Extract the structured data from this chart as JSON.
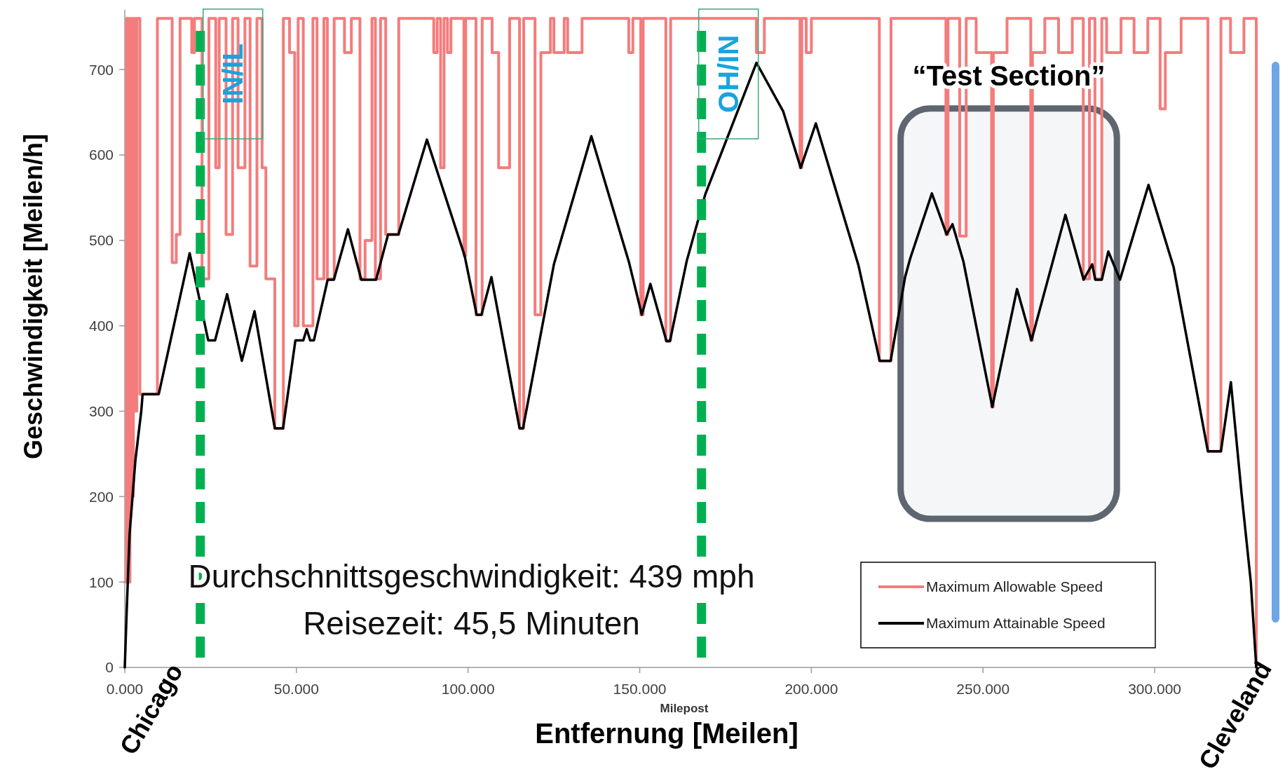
{
  "chart_data": {
    "type": "line",
    "xlabel": "Entfernung [Meilen]",
    "ylabel": "Geschwindigkeit [Meilen/h]",
    "xlim": [
      0,
      330
    ],
    "ylim": [
      0,
      770
    ],
    "xticks": [
      {
        "value": 0,
        "label": "0.000"
      },
      {
        "value": 50,
        "label": "50.000"
      },
      {
        "value": 100,
        "label": "100.000"
      },
      {
        "value": 150,
        "label": "150.000"
      },
      {
        "value": 200,
        "label": "200.000"
      },
      {
        "value": 250,
        "label": "250.000"
      },
      {
        "value": 300,
        "label": "300.000"
      }
    ],
    "yticks": [
      0,
      100,
      200,
      300,
      400,
      500,
      600,
      700
    ],
    "grid": false,
    "legend": "bottom right",
    "series": [
      {
        "name": "Maximum Allowable Speed",
        "type": "step",
        "color": "#f47c7c",
        "x": [
          0,
          0.5,
          1,
          1.5,
          2,
          2.5,
          3,
          3.5,
          4.4,
          9.5,
          13.8,
          15,
          16.1,
          19.5,
          20.3,
          22.5,
          24.5,
          26.5,
          27.5,
          29.5,
          31.4,
          33,
          35,
          36.5,
          38.5,
          40,
          41.1,
          43.7,
          46.2,
          48,
          49.5,
          50.5,
          52,
          54.8,
          56,
          58,
          59,
          61,
          64,
          66,
          68.5,
          70,
          72,
          73,
          74.5,
          76,
          79.8,
          90,
          91,
          92,
          93,
          94,
          95,
          98.8,
          99.3,
          102.3,
          104.1,
          107,
          108.9,
          112.1,
          115,
          116.2,
          119.5,
          121.2,
          124,
          125,
          128,
          129,
          133.2,
          146.8,
          148,
          150.3,
          151,
          157.6,
          159,
          184,
          186.3,
          196.7,
          197.2,
          198.5,
          200,
          219.8,
          223.2,
          239.2,
          239.8,
          243.2,
          245.1,
          248,
          252.5,
          253,
          257,
          263.9,
          264.4,
          268,
          272,
          276,
          279.2,
          281,
          282.6,
          284.6,
          286,
          290.2,
          294,
          298,
          301.6,
          303.1,
          307.7,
          315.5,
          319.3,
          322.1,
          326,
          329.6
        ],
        "values": [
          100,
          760,
          100,
          760,
          200,
          760,
          300,
          760,
          320,
          760,
          474,
          507,
          760,
          720,
          760,
          455,
          760,
          585,
          760,
          507,
          760,
          585,
          760,
          470,
          760,
          585,
          455,
          280,
          760,
          720,
          400,
          760,
          400,
          760,
          455,
          760,
          455,
          760,
          720,
          760,
          455,
          500,
          760,
          455,
          760,
          507,
          760,
          720,
          760,
          585,
          760,
          720,
          760,
          482,
          760,
          413,
          760,
          720,
          585,
          760,
          280,
          760,
          413,
          720,
          760,
          720,
          760,
          720,
          760,
          720,
          760,
          413,
          760,
          383,
          760,
          720,
          760,
          585,
          760,
          720,
          760,
          359,
          760,
          507,
          760,
          505,
          760,
          720,
          305,
          720,
          760,
          383,
          720,
          760,
          720,
          760,
          455,
          760,
          455,
          760,
          720,
          760,
          720,
          760,
          654,
          720,
          760,
          253,
          760,
          720,
          760,
          0
        ]
      },
      {
        "name": "Maximum Attainable Speed",
        "type": "line",
        "color": "#000000",
        "x": [
          0,
          0.5,
          1.4,
          3.1,
          4.8,
          5.2,
          9.9,
          18.9,
          24.3,
          26.3,
          29.8,
          34.1,
          37.8,
          43.7,
          46.1,
          49.7,
          52,
          53,
          54,
          55.1,
          59.1,
          60.9,
          65,
          68.9,
          73.2,
          76.7,
          79.7,
          88,
          99,
          102.5,
          103.9,
          106.8,
          115,
          116,
          125,
          135.9,
          146.9,
          150.6,
          153.1,
          157.8,
          158.8,
          163.7,
          169.1,
          184,
          191.8,
          196.9,
          201.3,
          213.7,
          219.9,
          223.1,
          227.3,
          228.8,
          235.1,
          239.4,
          241.1,
          244.3,
          252.7,
          259.9,
          264.1,
          274,
          279.3,
          281.8,
          282.7,
          284.6,
          286.5,
          289.9,
          298.2,
          305.5,
          315.5,
          319.3,
          322.2,
          325.3,
          328,
          329.6
        ],
        "values": [
          0,
          60,
          156,
          243,
          300,
          320,
          320,
          485,
          383,
          383,
          437,
          359,
          417,
          280,
          280,
          383,
          383,
          396,
          383,
          383,
          454,
          454,
          513,
          454,
          454,
          507,
          507,
          618,
          482,
          413,
          413,
          457,
          280,
          280,
          472,
          622,
          474,
          413,
          449,
          382,
          382,
          476,
          554,
          708,
          651,
          585,
          637,
          471,
          359,
          359,
          457,
          479,
          555,
          507,
          519,
          475,
          305,
          443,
          383,
          530,
          454,
          472,
          454,
          454,
          487,
          454,
          565,
          469,
          253,
          253,
          334,
          204,
          100,
          0
        ]
      }
    ],
    "ref_lines": [
      {
        "axis": "x",
        "value": 22,
        "label": "IN/IL",
        "color": "#00b050",
        "line_style": "dashed"
      },
      {
        "axis": "x",
        "value": 168,
        "label": "OH/IN",
        "color": "#00b050",
        "line_style": "dashed"
      }
    ],
    "bands": [
      {
        "axis": "x",
        "from": 226,
        "to": 289,
        "label": "“Test Section”"
      }
    ],
    "annotations": [
      "Durchschnittsgeschwindigkeit: 439 mph",
      "Reisezeit: 45,5 Minuten",
      "Milepost",
      {
        "text": "Chicago",
        "x": 0,
        "y": 0
      },
      {
        "text": "Cleveland",
        "x": 329.6,
        "y": 0
      }
    ]
  }
}
